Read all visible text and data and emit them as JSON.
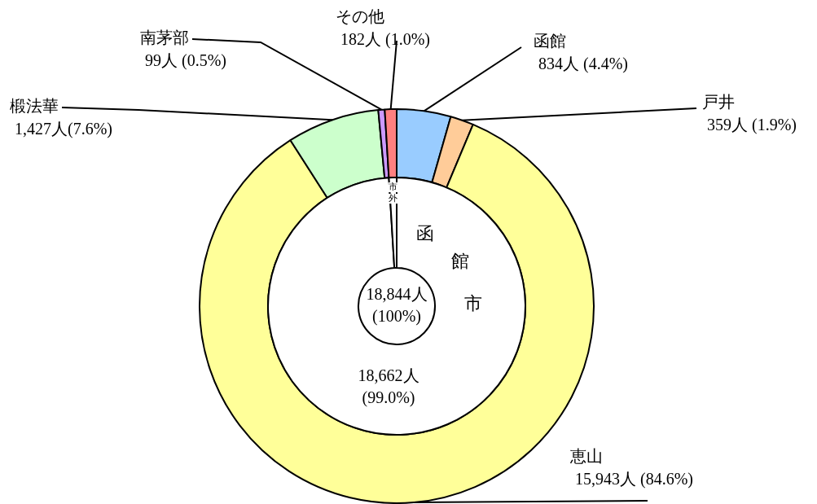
{
  "chart_data": [
    {
      "type": "donut",
      "categories": [
        "函館",
        "戸井",
        "恵山",
        "椴法華",
        "南茅部",
        "その他"
      ],
      "values": [
        834,
        359,
        15943,
        1427,
        99,
        182
      ],
      "colors": [
        "#99ccff",
        "#ffcc99",
        "#ffff99",
        "#ccffcc",
        "#cc99ff",
        "#ff8080"
      ],
      "value_labels": [
        "834人 (4.4%)",
        "359人 (1.9%)",
        "15,943人 (84.6%)",
        "1,427人(7.6%)",
        "99人 (0.5%)",
        "182人 (1.0%)"
      ]
    },
    {
      "type": "donut",
      "categories": [
        "函館市",
        "市外"
      ],
      "values": [
        18662,
        182
      ],
      "colors": [
        "#ffffff",
        "#ffffff"
      ],
      "value_labels": [
        "18,662人 (99.0%)",
        null
      ],
      "annotations": [
        "18,844人 (100%)"
      ]
    }
  ]
}
